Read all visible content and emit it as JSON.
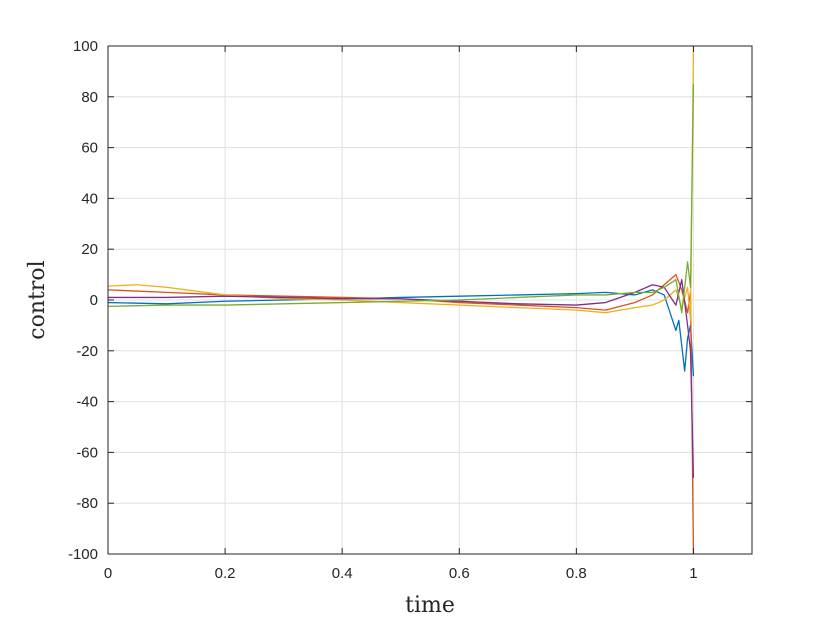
{
  "chart_data": {
    "type": "line",
    "xlabel": "time",
    "ylabel": "control",
    "xlim": [
      0,
      1.1
    ],
    "ylim": [
      -100,
      100
    ],
    "xticks": [
      0,
      0.2,
      0.4,
      0.6,
      0.8,
      1
    ],
    "xtick_labels": [
      "0",
      "0.2",
      "0.4",
      "0.6",
      "0.8",
      "1"
    ],
    "yticks": [
      -100,
      -80,
      -60,
      -40,
      -20,
      0,
      20,
      40,
      60,
      80,
      100
    ],
    "ytick_labels": [
      "-100",
      "-80",
      "-60",
      "-40",
      "-20",
      "0",
      "20",
      "40",
      "60",
      "80",
      "100"
    ],
    "grid": true,
    "series": [
      {
        "color": "#0072BD",
        "points": [
          [
            0,
            -1
          ],
          [
            0.1,
            -1.5
          ],
          [
            0.2,
            -0.5
          ],
          [
            0.3,
            0
          ],
          [
            0.4,
            0.5
          ],
          [
            0.5,
            1
          ],
          [
            0.6,
            1.5
          ],
          [
            0.7,
            2
          ],
          [
            0.8,
            2.5
          ],
          [
            0.85,
            3
          ],
          [
            0.9,
            2
          ],
          [
            0.93,
            4
          ],
          [
            0.95,
            2
          ],
          [
            0.96,
            -5
          ],
          [
            0.97,
            -12
          ],
          [
            0.975,
            -8
          ],
          [
            0.98,
            -18
          ],
          [
            0.985,
            -28
          ],
          [
            0.99,
            -15
          ],
          [
            0.995,
            -10
          ],
          [
            1.0,
            -30
          ]
        ]
      },
      {
        "color": "#D95319",
        "points": [
          [
            0,
            4
          ],
          [
            0.1,
            3
          ],
          [
            0.2,
            2
          ],
          [
            0.3,
            1.5
          ],
          [
            0.4,
            1
          ],
          [
            0.5,
            0.5
          ],
          [
            0.6,
            -1
          ],
          [
            0.7,
            -2
          ],
          [
            0.8,
            -3
          ],
          [
            0.85,
            -4
          ],
          [
            0.9,
            -1
          ],
          [
            0.93,
            2
          ],
          [
            0.95,
            6
          ],
          [
            0.97,
            10
          ],
          [
            0.98,
            4
          ],
          [
            0.99,
            -5
          ],
          [
            0.995,
            3
          ],
          [
            1.0,
            -100
          ]
        ]
      },
      {
        "color": "#EDB120",
        "points": [
          [
            0,
            5.5
          ],
          [
            0.05,
            6
          ],
          [
            0.1,
            5
          ],
          [
            0.2,
            2
          ],
          [
            0.3,
            0.5
          ],
          [
            0.4,
            0
          ],
          [
            0.5,
            -1
          ],
          [
            0.6,
            -2
          ],
          [
            0.7,
            -3
          ],
          [
            0.8,
            -4
          ],
          [
            0.85,
            -5
          ],
          [
            0.9,
            -3
          ],
          [
            0.93,
            -2
          ],
          [
            0.95,
            0
          ],
          [
            0.97,
            4
          ],
          [
            0.98,
            -3
          ],
          [
            0.99,
            5
          ],
          [
            0.995,
            -8
          ],
          [
            1.0,
            100
          ]
        ]
      },
      {
        "color": "#7E2F8E",
        "points": [
          [
            0,
            1
          ],
          [
            0.1,
            1
          ],
          [
            0.2,
            1.5
          ],
          [
            0.3,
            1
          ],
          [
            0.4,
            0.5
          ],
          [
            0.5,
            0.5
          ],
          [
            0.6,
            -0.5
          ],
          [
            0.7,
            -1.5
          ],
          [
            0.8,
            -2
          ],
          [
            0.85,
            -1
          ],
          [
            0.9,
            3
          ],
          [
            0.93,
            6
          ],
          [
            0.95,
            5
          ],
          [
            0.97,
            -2
          ],
          [
            0.98,
            8
          ],
          [
            0.99,
            -10
          ],
          [
            0.995,
            -20
          ],
          [
            1.0,
            -70
          ]
        ]
      },
      {
        "color": "#77AC30",
        "points": [
          [
            0,
            -2.5
          ],
          [
            0.1,
            -2
          ],
          [
            0.2,
            -2
          ],
          [
            0.3,
            -1.5
          ],
          [
            0.4,
            -1
          ],
          [
            0.5,
            -0.5
          ],
          [
            0.6,
            0
          ],
          [
            0.7,
            1
          ],
          [
            0.8,
            2
          ],
          [
            0.85,
            2
          ],
          [
            0.9,
            3
          ],
          [
            0.93,
            3
          ],
          [
            0.95,
            5
          ],
          [
            0.97,
            8
          ],
          [
            0.98,
            -5
          ],
          [
            0.99,
            15
          ],
          [
            0.995,
            5
          ],
          [
            1.0,
            85
          ]
        ]
      }
    ]
  }
}
